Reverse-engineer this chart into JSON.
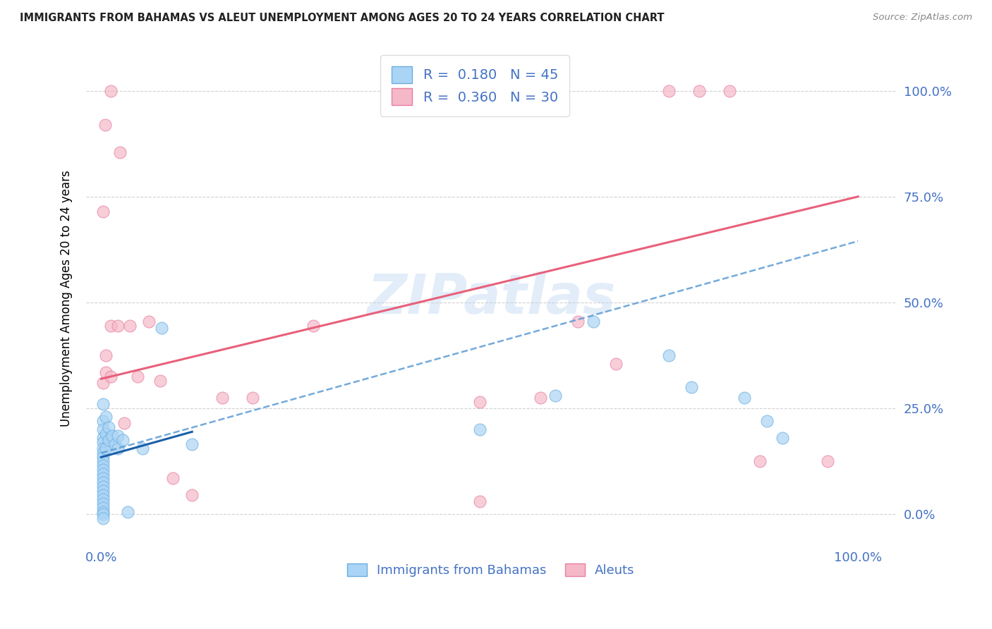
{
  "title": "IMMIGRANTS FROM BAHAMAS VS ALEUT UNEMPLOYMENT AMONG AGES 20 TO 24 YEARS CORRELATION CHART",
  "source": "Source: ZipAtlas.com",
  "ylabel": "Unemployment Among Ages 20 to 24 years",
  "legend_labels": [
    "Immigrants from Bahamas",
    "Aleuts"
  ],
  "blue_R": "0.180",
  "blue_N": "45",
  "pink_R": "0.360",
  "pink_N": "30",
  "watermark": "ZIPatlas",
  "blue_color": "#aad4f5",
  "pink_color": "#f5b8c8",
  "blue_marker_edge": "#6aaee0",
  "pink_marker_edge": "#e87fa0",
  "blue_line_color": "#1a5fa8",
  "pink_line_color": "#e8607a",
  "blue_scatter": [
    [
      0.002,
      0.26
    ],
    [
      0.002,
      0.22
    ],
    [
      0.002,
      0.2
    ],
    [
      0.002,
      0.18
    ],
    [
      0.002,
      0.17
    ],
    [
      0.002,
      0.155
    ],
    [
      0.002,
      0.145
    ],
    [
      0.002,
      0.135
    ],
    [
      0.002,
      0.125
    ],
    [
      0.002,
      0.115
    ],
    [
      0.002,
      0.105
    ],
    [
      0.002,
      0.095
    ],
    [
      0.002,
      0.085
    ],
    [
      0.002,
      0.075
    ],
    [
      0.002,
      0.065
    ],
    [
      0.002,
      0.055
    ],
    [
      0.002,
      0.045
    ],
    [
      0.002,
      0.035
    ],
    [
      0.002,
      0.025
    ],
    [
      0.002,
      0.015
    ],
    [
      0.002,
      0.005
    ],
    [
      0.002,
      0.0
    ],
    [
      0.002,
      -0.01
    ],
    [
      0.006,
      0.23
    ],
    [
      0.006,
      0.19
    ],
    [
      0.006,
      0.155
    ],
    [
      0.01,
      0.205
    ],
    [
      0.01,
      0.175
    ],
    [
      0.014,
      0.185
    ],
    [
      0.018,
      0.165
    ],
    [
      0.022,
      0.185
    ],
    [
      0.022,
      0.155
    ],
    [
      0.028,
      0.175
    ],
    [
      0.035,
      0.005
    ],
    [
      0.055,
      0.155
    ],
    [
      0.08,
      0.44
    ],
    [
      0.12,
      0.165
    ],
    [
      0.5,
      0.2
    ],
    [
      0.65,
      0.455
    ],
    [
      0.75,
      0.375
    ],
    [
      0.85,
      0.275
    ],
    [
      0.9,
      0.18
    ],
    [
      0.88,
      0.22
    ],
    [
      0.78,
      0.3
    ],
    [
      0.6,
      0.28
    ]
  ],
  "pink_scatter": [
    [
      0.005,
      0.92
    ],
    [
      0.013,
      1.0
    ],
    [
      0.025,
      0.855
    ],
    [
      0.002,
      0.715
    ],
    [
      0.002,
      0.31
    ],
    [
      0.006,
      0.375
    ],
    [
      0.006,
      0.335
    ],
    [
      0.013,
      0.445
    ],
    [
      0.013,
      0.325
    ],
    [
      0.022,
      0.445
    ],
    [
      0.03,
      0.215
    ],
    [
      0.038,
      0.445
    ],
    [
      0.048,
      0.325
    ],
    [
      0.063,
      0.455
    ],
    [
      0.078,
      0.315
    ],
    [
      0.095,
      0.085
    ],
    [
      0.12,
      0.045
    ],
    [
      0.16,
      0.275
    ],
    [
      0.2,
      0.275
    ],
    [
      0.28,
      0.445
    ],
    [
      0.5,
      0.265
    ],
    [
      0.58,
      0.275
    ],
    [
      0.63,
      0.455
    ],
    [
      0.68,
      0.355
    ],
    [
      0.75,
      1.0
    ],
    [
      0.79,
      1.0
    ],
    [
      0.83,
      1.0
    ],
    [
      0.87,
      0.125
    ],
    [
      0.96,
      0.125
    ],
    [
      0.5,
      0.03
    ]
  ],
  "blue_line_y_intercept": 0.145,
  "blue_line_slope": 0.5,
  "pink_line_y_intercept": 0.32,
  "pink_line_slope": 0.43,
  "xlim": [
    -0.02,
    1.05
  ],
  "ylim": [
    -0.08,
    1.1
  ],
  "yticks": [
    0.0,
    0.25,
    0.5,
    0.75,
    1.0
  ],
  "ytick_labels": [
    "0.0%",
    "25.0%",
    "50.0%",
    "75.0%",
    "100.0%"
  ],
  "xticks": [
    0.0,
    1.0
  ],
  "xtick_labels": [
    "0.0%",
    "100.0%"
  ]
}
